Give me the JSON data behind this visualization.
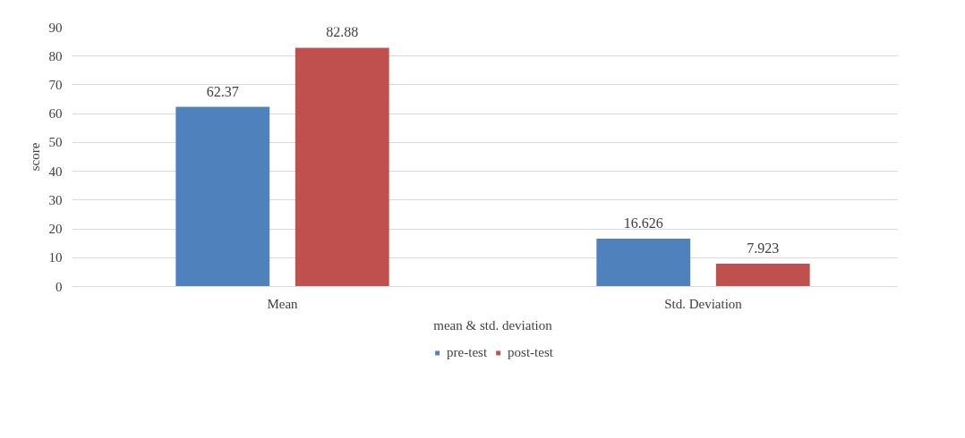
{
  "chart_data": {
    "type": "bar",
    "xlabel": "mean & std. deviation",
    "ylabel": "score",
    "categories": [
      "Mean",
      "Std. Deviation"
    ],
    "series": [
      {
        "name": "pre-test",
        "color": "#4f81bd",
        "values": [
          62.37,
          16.626
        ]
      },
      {
        "name": "post-test",
        "color": "#c0504d",
        "values": [
          82.88,
          7.923
        ]
      }
    ],
    "ylim": [
      0,
      90
    ],
    "yticks": [
      0,
      10,
      20,
      30,
      40,
      50,
      60,
      70,
      80,
      90
    ],
    "grid": "y",
    "legend": "bottom",
    "data_labels": true
  }
}
